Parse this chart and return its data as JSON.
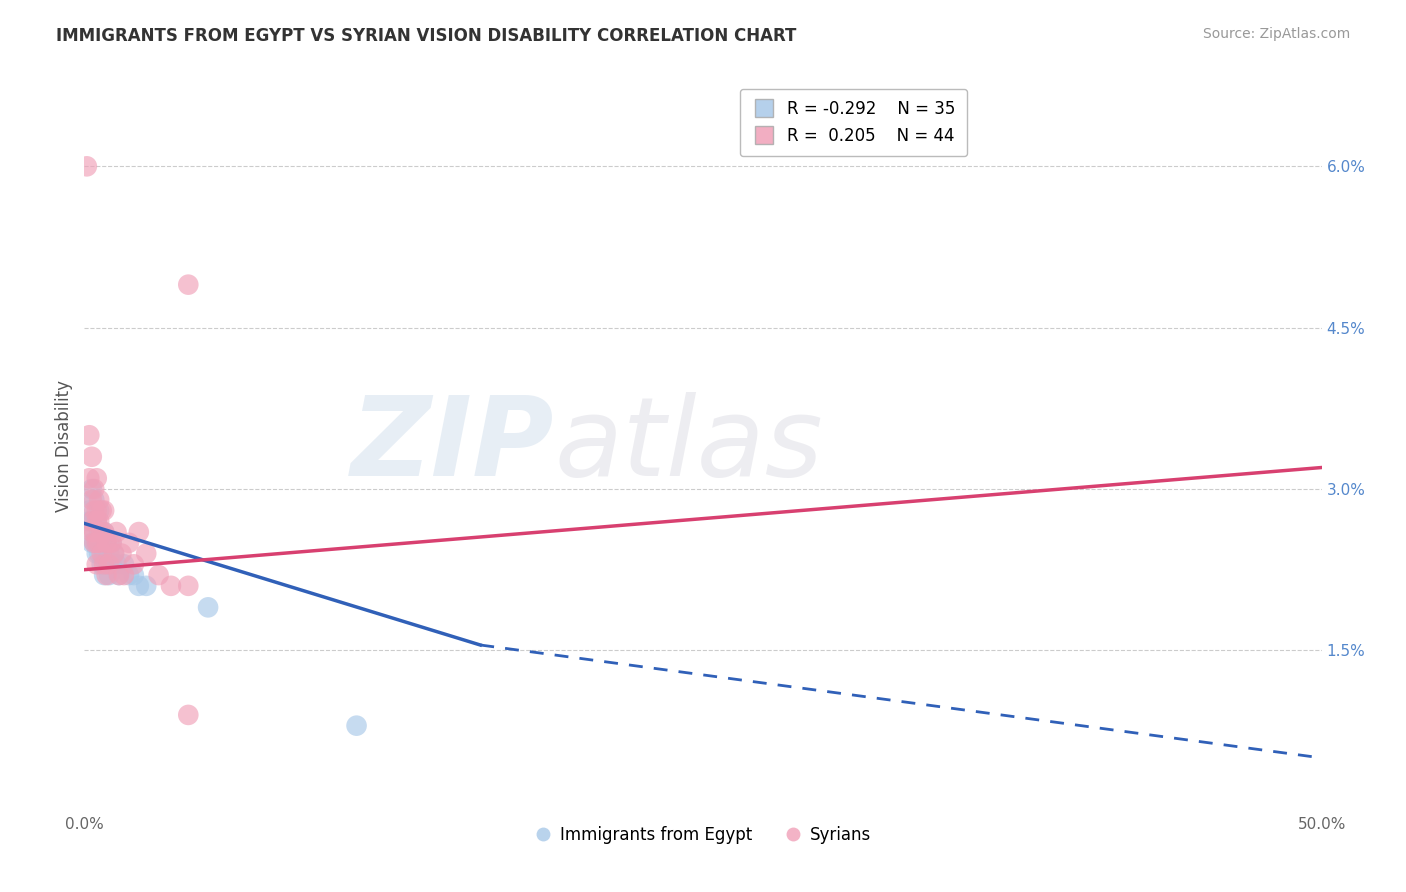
{
  "title": "IMMIGRANTS FROM EGYPT VS SYRIAN VISION DISABILITY CORRELATION CHART",
  "source": "Source: ZipAtlas.com",
  "ylabel_label": "Vision Disability",
  "legend_label1": "Immigrants from Egypt",
  "legend_label2": "Syrians",
  "legend_R1": "R = -0.292",
  "legend_N1": "N = 35",
  "legend_R2": "R =  0.205",
  "legend_N2": "N = 44",
  "color_egypt": "#a8c8e8",
  "color_syria": "#f0a0b8",
  "bg_color": "#ffffff",
  "grid_color": "#cccccc",
  "xlim": [
    0.0,
    0.5
  ],
  "ylim": [
    0.0,
    0.068
  ],
  "ytick_vals": [
    0.015,
    0.03,
    0.045,
    0.06
  ],
  "ytick_labels": [
    "1.5%",
    "3.0%",
    "4.5%",
    "6.0%"
  ],
  "egypt_points": [
    [
      0.002,
      0.028
    ],
    [
      0.002,
      0.027
    ],
    [
      0.003,
      0.03
    ],
    [
      0.003,
      0.027
    ],
    [
      0.003,
      0.025
    ],
    [
      0.004,
      0.029
    ],
    [
      0.004,
      0.026
    ],
    [
      0.004,
      0.025
    ],
    [
      0.005,
      0.027
    ],
    [
      0.005,
      0.025
    ],
    [
      0.005,
      0.024
    ],
    [
      0.006,
      0.028
    ],
    [
      0.006,
      0.026
    ],
    [
      0.006,
      0.024
    ],
    [
      0.007,
      0.025
    ],
    [
      0.007,
      0.023
    ],
    [
      0.008,
      0.026
    ],
    [
      0.008,
      0.024
    ],
    [
      0.008,
      0.022
    ],
    [
      0.009,
      0.025
    ],
    [
      0.009,
      0.023
    ],
    [
      0.01,
      0.024
    ],
    [
      0.01,
      0.022
    ],
    [
      0.011,
      0.025
    ],
    [
      0.011,
      0.023
    ],
    [
      0.012,
      0.024
    ],
    [
      0.013,
      0.023
    ],
    [
      0.014,
      0.022
    ],
    [
      0.016,
      0.023
    ],
    [
      0.018,
      0.022
    ],
    [
      0.02,
      0.022
    ],
    [
      0.022,
      0.021
    ],
    [
      0.025,
      0.021
    ],
    [
      0.05,
      0.019
    ],
    [
      0.11,
      0.008
    ]
  ],
  "syria_points": [
    [
      0.001,
      0.06
    ],
    [
      0.002,
      0.035
    ],
    [
      0.002,
      0.031
    ],
    [
      0.003,
      0.033
    ],
    [
      0.003,
      0.029
    ],
    [
      0.003,
      0.027
    ],
    [
      0.003,
      0.026
    ],
    [
      0.004,
      0.03
    ],
    [
      0.004,
      0.028
    ],
    [
      0.004,
      0.026
    ],
    [
      0.004,
      0.025
    ],
    [
      0.005,
      0.031
    ],
    [
      0.005,
      0.028
    ],
    [
      0.005,
      0.027
    ],
    [
      0.005,
      0.025
    ],
    [
      0.005,
      0.023
    ],
    [
      0.006,
      0.029
    ],
    [
      0.006,
      0.027
    ],
    [
      0.006,
      0.025
    ],
    [
      0.007,
      0.028
    ],
    [
      0.007,
      0.026
    ],
    [
      0.007,
      0.024
    ],
    [
      0.008,
      0.028
    ],
    [
      0.008,
      0.026
    ],
    [
      0.008,
      0.023
    ],
    [
      0.009,
      0.025
    ],
    [
      0.009,
      0.022
    ],
    [
      0.01,
      0.025
    ],
    [
      0.01,
      0.023
    ],
    [
      0.011,
      0.025
    ],
    [
      0.012,
      0.024
    ],
    [
      0.013,
      0.026
    ],
    [
      0.014,
      0.022
    ],
    [
      0.015,
      0.024
    ],
    [
      0.016,
      0.022
    ],
    [
      0.018,
      0.025
    ],
    [
      0.02,
      0.023
    ],
    [
      0.022,
      0.026
    ],
    [
      0.025,
      0.024
    ],
    [
      0.03,
      0.022
    ],
    [
      0.035,
      0.021
    ],
    [
      0.042,
      0.049
    ],
    [
      0.042,
      0.021
    ],
    [
      0.042,
      0.009
    ]
  ],
  "egypt_trendline_solid": [
    [
      0.0,
      0.0268
    ],
    [
      0.16,
      0.0155
    ]
  ],
  "egypt_trendline_dashed": [
    [
      0.16,
      0.0155
    ],
    [
      0.5,
      0.005
    ]
  ],
  "syria_trendline": [
    [
      0.0,
      0.0225
    ],
    [
      0.5,
      0.032
    ]
  ],
  "watermark_zip": "ZIP",
  "watermark_atlas": "atlas",
  "title_fontsize": 12,
  "axis_tick_fontsize": 11,
  "ylabel_fontsize": 12,
  "source_fontsize": 10
}
